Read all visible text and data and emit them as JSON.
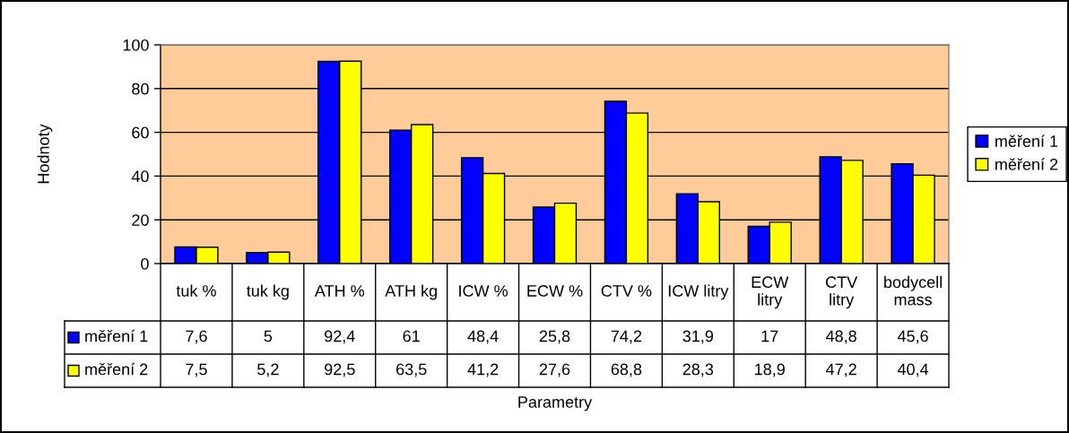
{
  "chart_data": {
    "type": "bar",
    "ylabel": "Hodnoty",
    "annotations": [
      "Parametry"
    ],
    "categories": [
      "tuk %",
      "tuk kg",
      "ATH %",
      "ATH kg",
      "ICW %",
      "ECW %",
      "CTV %",
      "ICW litry",
      "ECW litry",
      "CTV litry",
      "bodycell mass"
    ],
    "series": [
      {
        "name": "měření 1",
        "color": "#0000ff",
        "values": [
          7.6,
          5,
          92.4,
          61,
          48.4,
          25.8,
          74.2,
          31.9,
          17,
          48.8,
          45.6
        ],
        "value_labels": [
          "7,6",
          "5",
          "92,4",
          "61",
          "48,4",
          "25,8",
          "74,2",
          "31,9",
          "17",
          "48,8",
          "45,6"
        ]
      },
      {
        "name": "měření 2",
        "color": "#ffff00",
        "values": [
          7.5,
          5.2,
          92.5,
          63.5,
          41.2,
          27.6,
          68.8,
          28.3,
          18.9,
          47.2,
          40.4
        ],
        "value_labels": [
          "7,5",
          "5,2",
          "92,5",
          "63,5",
          "41,2",
          "27,6",
          "68,8",
          "28,3",
          "18,9",
          "47,2",
          "40,4"
        ]
      }
    ],
    "ylim": [
      0,
      100
    ],
    "yticks": [
      0,
      20,
      40,
      60,
      80,
      100
    ],
    "grid": "y",
    "legend": "right"
  }
}
